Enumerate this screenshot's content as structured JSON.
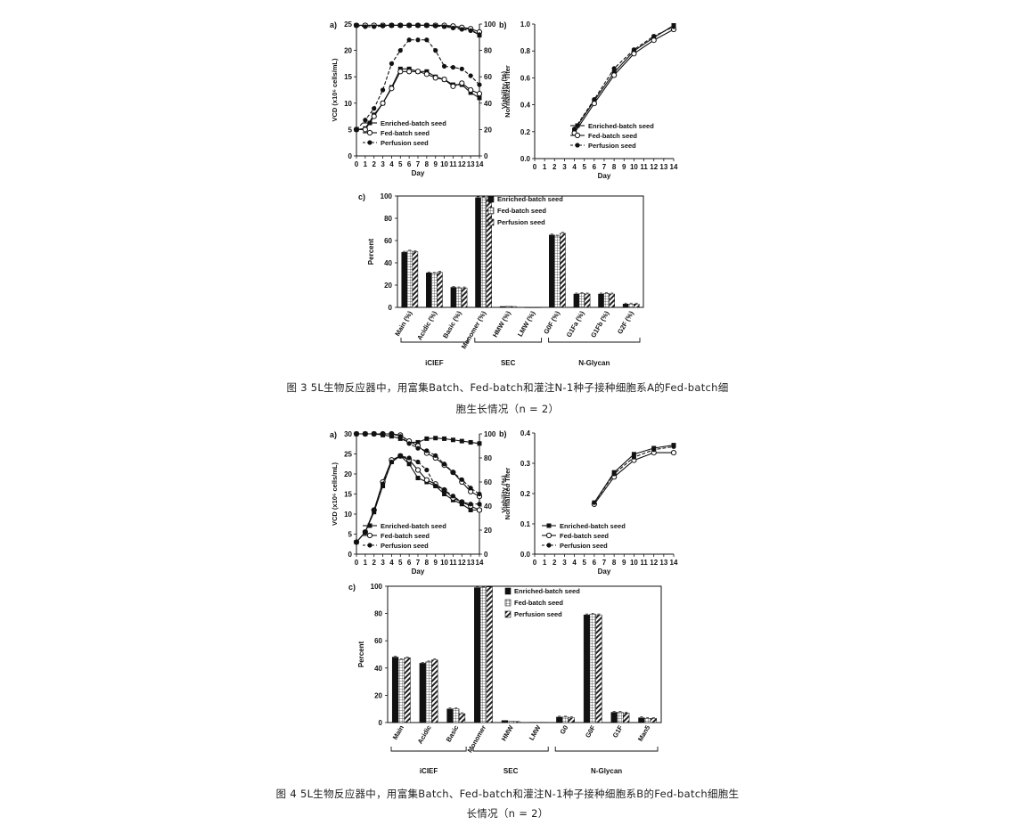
{
  "captions": {
    "fig3_line1": "图 3 5L生物反应器中，用富集Batch、Fed-batch和灌注N-1种子接种细胞系A的Fed-batch细",
    "fig3_line2": "胞生长情况（n = 2）",
    "fig4_line1": "图 4 5L生物反应器中，用富集Batch、Fed-batch和灌注N-1种子接种细胞系B的Fed-batch细胞生",
    "fig4_line2": "长情况（n = 2）"
  },
  "colors": {
    "line": "#111111",
    "open_fill": "#ffffff"
  },
  "chart_data": [
    {
      "id": "fig3a",
      "panel_label": "a)",
      "type": "line",
      "xlabel": "Day",
      "ylabel": "VCD (x10⁶ cells/mL)",
      "y2label": "Viability (%)",
      "xlim": [
        0,
        14
      ],
      "ylim": [
        0,
        25
      ],
      "y2lim": [
        0,
        100
      ],
      "xticks": [
        0,
        1,
        2,
        3,
        4,
        5,
        6,
        7,
        8,
        9,
        10,
        11,
        12,
        13,
        14
      ],
      "yticks": [
        0,
        5,
        10,
        15,
        20,
        25
      ],
      "y2ticks": [
        0,
        20,
        40,
        60,
        80,
        100
      ],
      "legend": [
        "Enriched-batch seed",
        "Fed-batch seed",
        "Perfusion seed"
      ],
      "x": [
        0,
        1,
        2,
        3,
        4,
        5,
        6,
        7,
        8,
        9,
        10,
        11,
        12,
        13,
        14
      ],
      "series": [
        {
          "name": "Enriched-batch seed",
          "marker": "square-filled",
          "dash": "solid",
          "axis": "left",
          "values": [
            5,
            5.2,
            7.8,
            10,
            13,
            16.5,
            16.5,
            16,
            16,
            15,
            14.5,
            13.5,
            13.5,
            12,
            11
          ]
        },
        {
          "name": "Fed-batch seed",
          "marker": "circle-open",
          "dash": "solid",
          "axis": "left",
          "values": [
            5,
            5,
            7.5,
            10,
            12.8,
            16,
            16,
            16,
            15.5,
            14.8,
            14.5,
            13.2,
            13.8,
            12.5,
            11.8
          ]
        },
        {
          "name": "Perfusion seed",
          "marker": "circle-filled",
          "dash": "dash",
          "axis": "left",
          "values": [
            5,
            6.8,
            9,
            12.5,
            17.5,
            20,
            22,
            22,
            22,
            20,
            17,
            16.8,
            16.5,
            15.2,
            13.5
          ]
        },
        {
          "name": "Enriched-batch seed",
          "marker": "square-filled",
          "dash": "solid",
          "axis": "right",
          "values": [
            99,
            99,
            99,
            99,
            99,
            99,
            99,
            99,
            99,
            99,
            98.5,
            98,
            97,
            96,
            91.5
          ]
        },
        {
          "name": "Fed-batch seed",
          "marker": "circle-open",
          "dash": "solid",
          "axis": "right",
          "values": [
            99,
            99,
            99,
            99,
            99,
            99,
            99,
            99,
            99,
            99,
            99,
            98.5,
            97.5,
            96.5,
            94
          ]
        },
        {
          "name": "Perfusion seed",
          "marker": "circle-filled",
          "dash": "dash",
          "axis": "right",
          "values": [
            99,
            98,
            98,
            98.5,
            99,
            99,
            99,
            99,
            99,
            98.5,
            98,
            97,
            96,
            95,
            92
          ]
        }
      ]
    },
    {
      "id": "fig3b",
      "panel_label": "b)",
      "type": "line",
      "xlabel": "Day",
      "ylabel": "Normalized Titer",
      "xlim": [
        0,
        14
      ],
      "ylim": [
        0,
        1.0
      ],
      "xticks": [
        0,
        1,
        2,
        3,
        4,
        5,
        6,
        7,
        8,
        9,
        10,
        11,
        12,
        13,
        14
      ],
      "yticks": [
        "0.0",
        "0.2",
        "0.4",
        "0.6",
        "0.8",
        "1.0"
      ],
      "legend": [
        "Enriched-batch seed",
        "Fed-batch seed",
        "Perfusion seed"
      ],
      "x": [
        4,
        6,
        8,
        10,
        12,
        14
      ],
      "series": [
        {
          "name": "Enriched-batch seed",
          "marker": "square-filled",
          "dash": "solid",
          "values": [
            0.21,
            0.43,
            0.64,
            0.8,
            0.9,
            0.99
          ]
        },
        {
          "name": "Fed-batch seed",
          "marker": "circle-open",
          "dash": "solid",
          "values": [
            0.19,
            0.41,
            0.62,
            0.78,
            0.88,
            0.96
          ]
        },
        {
          "name": "Perfusion seed",
          "marker": "circle-filled",
          "dash": "dash",
          "values": [
            0.22,
            0.44,
            0.67,
            0.81,
            0.91,
            0.98
          ]
        }
      ]
    },
    {
      "id": "fig3c",
      "panel_label": "c)",
      "type": "bar",
      "ylabel": "Percent",
      "ylim": [
        0,
        100
      ],
      "yticks": [
        0,
        20,
        40,
        60,
        80,
        100
      ],
      "legend": [
        "Enriched-batch seed",
        "Fed-batch seed",
        "Perfusion seed"
      ],
      "categories": [
        "Main (%)",
        "Acidic (%)",
        "Basic (%)",
        "Monomer (%)",
        "HMW (%)",
        "LMW (%)",
        "G0F (%)",
        "G1Fa (%)",
        "G1Fb (%)",
        "G2F (%)"
      ],
      "groups": [
        {
          "label": "iCIEF",
          "from": 0,
          "to": 2
        },
        {
          "label": "SEC",
          "from": 3,
          "to": 5
        },
        {
          "label": "N-Glycan",
          "from": 6,
          "to": 9
        }
      ],
      "series": [
        {
          "name": "Enriched-batch seed",
          "pattern": "solid",
          "values": [
            49.5,
            31,
            18,
            98.5,
            0.8,
            0.1,
            65,
            12,
            12,
            3
          ]
        },
        {
          "name": "Fed-batch seed",
          "pattern": "grid",
          "values": [
            50.5,
            30.5,
            17.5,
            98.5,
            0.9,
            0.1,
            64,
            12.5,
            12.5,
            3
          ]
        },
        {
          "name": "Perfusion seed",
          "pattern": "hatch",
          "values": [
            50,
            31.5,
            17.5,
            98.5,
            0.8,
            0.1,
            66.5,
            12,
            12,
            3
          ]
        }
      ]
    },
    {
      "id": "fig4a",
      "panel_label": "a)",
      "type": "line",
      "xlabel": "Day",
      "ylabel": "VCD (x10⁶ cells/mL)",
      "y2label": "Viability (%)",
      "xlim": [
        0,
        14
      ],
      "ylim": [
        0,
        30
      ],
      "y2lim": [
        0,
        100
      ],
      "xticks": [
        0,
        1,
        2,
        3,
        4,
        5,
        6,
        7,
        8,
        9,
        10,
        11,
        12,
        13,
        14
      ],
      "yticks": [
        0,
        5,
        10,
        15,
        20,
        25,
        30
      ],
      "y2ticks": [
        0,
        20,
        40,
        60,
        80,
        100
      ],
      "legend": [
        "Enriched-batch seed",
        "Fed-batch seed",
        "Perfusion seed"
      ],
      "x": [
        0,
        1,
        2,
        3,
        4,
        5,
        6,
        7,
        8,
        9,
        10,
        11,
        12,
        13,
        14
      ],
      "series": [
        {
          "name": "Enriched-batch seed",
          "marker": "square-filled",
          "dash": "solid",
          "axis": "left",
          "values": [
            3,
            5.5,
            10.5,
            17,
            23,
            24.5,
            22.5,
            19,
            18,
            17,
            15,
            13.5,
            12.5,
            11,
            11
          ]
        },
        {
          "name": "Fed-batch seed",
          "marker": "circle-open",
          "dash": "solid",
          "axis": "left",
          "values": [
            3,
            5.5,
            11,
            18,
            23.5,
            24.5,
            23.5,
            21,
            18.5,
            17.5,
            16,
            14,
            13,
            12,
            11
          ]
        },
        {
          "name": "Perfusion seed",
          "marker": "circle-filled",
          "dash": "dash",
          "axis": "left",
          "values": [
            3,
            5.5,
            11,
            17.5,
            23,
            24.5,
            24,
            23,
            21,
            17,
            16,
            14.5,
            13,
            12.5,
            12.5
          ]
        },
        {
          "name": "Enriched-batch seed",
          "marker": "square-filled",
          "dash": "solid",
          "axis": "right",
          "values": [
            100,
            100,
            100,
            99,
            98,
            96,
            93,
            93,
            96,
            96.5,
            96,
            95,
            94,
            93,
            92
          ]
        },
        {
          "name": "Fed-batch seed",
          "marker": "circle-open",
          "dash": "solid",
          "axis": "right",
          "values": [
            100,
            100,
            100,
            100,
            100,
            99,
            94,
            90,
            84,
            80,
            74,
            68,
            60,
            52,
            48
          ]
        },
        {
          "name": "Perfusion seed",
          "marker": "circle-filled",
          "dash": "dash",
          "axis": "right",
          "values": [
            100,
            100,
            100,
            100,
            100,
            98,
            92,
            88,
            86,
            82,
            75,
            68,
            62,
            55,
            50
          ]
        }
      ]
    },
    {
      "id": "fig4b",
      "panel_label": "b)",
      "type": "line",
      "xlabel": "Day",
      "ylabel": "Normalized Titer",
      "xlim": [
        0,
        14
      ],
      "ylim": [
        0,
        0.4
      ],
      "xticks": [
        0,
        1,
        2,
        3,
        4,
        5,
        6,
        7,
        8,
        9,
        10,
        11,
        12,
        13,
        14
      ],
      "yticks": [
        "0.0",
        "0.1",
        "0.2",
        "0.3",
        "0.4"
      ],
      "legend": [
        "Enriched-batch seed",
        "Fed-batch seed",
        "Perfusion seed"
      ],
      "x": [
        6,
        8,
        10,
        12,
        14
      ],
      "series": [
        {
          "name": "Enriched-batch seed",
          "marker": "square-filled",
          "dash": "solid",
          "values": [
            0.17,
            0.27,
            0.33,
            0.35,
            0.36
          ]
        },
        {
          "name": "Fed-batch seed",
          "marker": "circle-open",
          "dash": "solid",
          "values": [
            0.165,
            0.255,
            0.31,
            0.335,
            0.335
          ]
        },
        {
          "name": "Perfusion seed",
          "marker": "circle-filled",
          "dash": "dash",
          "values": [
            0.17,
            0.265,
            0.32,
            0.345,
            0.355
          ]
        }
      ]
    },
    {
      "id": "fig4c",
      "panel_label": "c)",
      "type": "bar",
      "ylabel": "Percent",
      "ylim": [
        0,
        100
      ],
      "yticks": [
        0,
        20,
        40,
        60,
        80,
        100
      ],
      "legend": [
        "Enriched-batch seed",
        "Fed-batch seed",
        "Perfusion seed"
      ],
      "categories": [
        "Main",
        "Acidic",
        "Basic",
        "Monomer",
        "HMW",
        "LMW",
        "G0",
        "G0F",
        "G1F",
        "Man5"
      ],
      "groups": [
        {
          "label": "iCIEF",
          "from": 0,
          "to": 2
        },
        {
          "label": "SEC",
          "from": 3,
          "to": 5
        },
        {
          "label": "N-Glycan",
          "from": 6,
          "to": 9
        }
      ],
      "series": [
        {
          "name": "Enriched-batch seed",
          "pattern": "solid",
          "values": [
            48,
            43.5,
            10,
            99,
            1.5,
            0.2,
            4,
            79,
            7.5,
            3.5
          ]
        },
        {
          "name": "Fed-batch seed",
          "pattern": "grid",
          "values": [
            46,
            44.5,
            10,
            99,
            1,
            0.2,
            4,
            79.5,
            7.5,
            3
          ]
        },
        {
          "name": "Perfusion seed",
          "pattern": "hatch",
          "values": [
            47.5,
            46,
            6.5,
            99.5,
            0.8,
            0.2,
            3.5,
            79,
            7,
            3
          ]
        }
      ]
    }
  ]
}
